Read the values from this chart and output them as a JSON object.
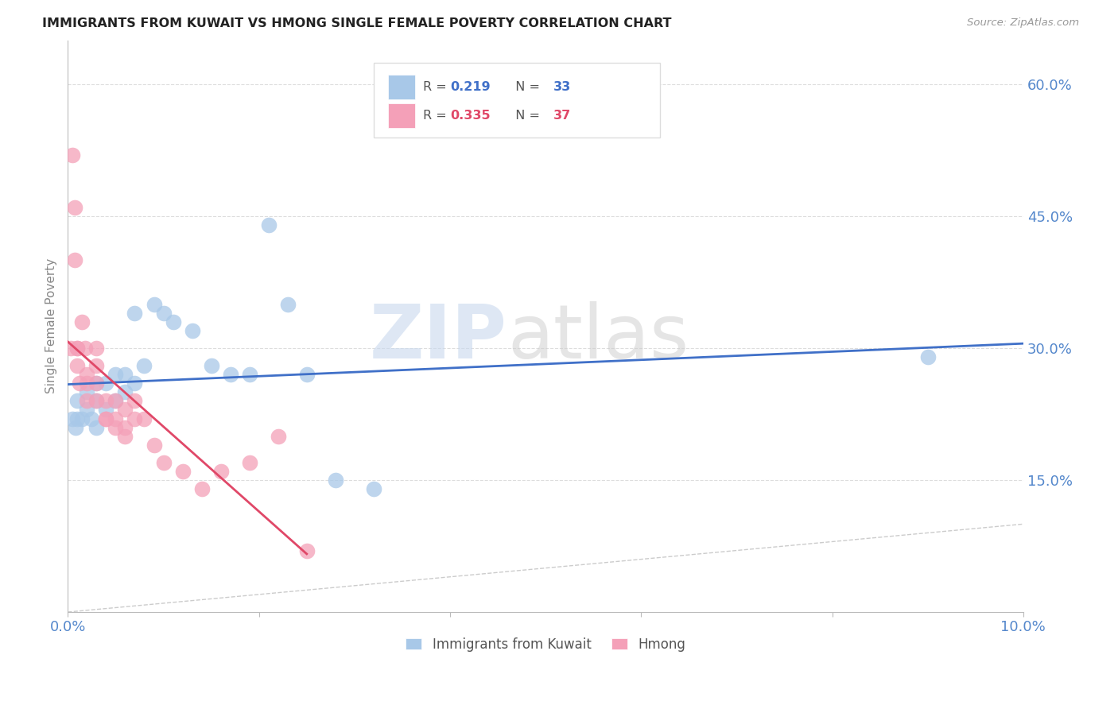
{
  "title": "IMMIGRANTS FROM KUWAIT VS HMONG SINGLE FEMALE POVERTY CORRELATION CHART",
  "source": "Source: ZipAtlas.com",
  "ylabel": "Single Female Poverty",
  "xlim": [
    0.0,
    0.1
  ],
  "ylim": [
    0.0,
    0.65
  ],
  "kuwait_R": 0.219,
  "kuwait_N": 33,
  "hmong_R": 0.335,
  "hmong_N": 37,
  "kuwait_color": "#a8c8e8",
  "hmong_color": "#f4a0b8",
  "kuwait_line_color": "#4070c8",
  "hmong_line_color": "#e04868",
  "diagonal_color": "#cccccc",
  "background_color": "#ffffff",
  "grid_color": "#dddddd",
  "axis_color": "#bbbbbb",
  "tick_label_color": "#5588cc",
  "title_color": "#222222",
  "kuwait_x": [
    0.0005,
    0.0008,
    0.001,
    0.001,
    0.0015,
    0.002,
    0.002,
    0.0025,
    0.003,
    0.003,
    0.003,
    0.004,
    0.004,
    0.005,
    0.005,
    0.006,
    0.006,
    0.007,
    0.007,
    0.008,
    0.009,
    0.01,
    0.011,
    0.013,
    0.015,
    0.017,
    0.019,
    0.021,
    0.023,
    0.025,
    0.028,
    0.032,
    0.09
  ],
  "kuwait_y": [
    0.22,
    0.21,
    0.22,
    0.24,
    0.22,
    0.23,
    0.25,
    0.22,
    0.21,
    0.24,
    0.26,
    0.23,
    0.26,
    0.24,
    0.27,
    0.25,
    0.27,
    0.26,
    0.34,
    0.28,
    0.35,
    0.34,
    0.33,
    0.32,
    0.28,
    0.27,
    0.27,
    0.44,
    0.35,
    0.27,
    0.15,
    0.14,
    0.29
  ],
  "hmong_x": [
    0.0003,
    0.0005,
    0.0007,
    0.0007,
    0.001,
    0.001,
    0.001,
    0.0012,
    0.0015,
    0.0018,
    0.002,
    0.002,
    0.002,
    0.003,
    0.003,
    0.003,
    0.003,
    0.004,
    0.004,
    0.004,
    0.005,
    0.005,
    0.005,
    0.006,
    0.006,
    0.006,
    0.007,
    0.007,
    0.008,
    0.009,
    0.01,
    0.012,
    0.014,
    0.016,
    0.019,
    0.022,
    0.025
  ],
  "hmong_y": [
    0.3,
    0.52,
    0.46,
    0.4,
    0.3,
    0.3,
    0.28,
    0.26,
    0.33,
    0.3,
    0.27,
    0.26,
    0.24,
    0.3,
    0.28,
    0.26,
    0.24,
    0.22,
    0.24,
    0.22,
    0.21,
    0.22,
    0.24,
    0.23,
    0.2,
    0.21,
    0.24,
    0.22,
    0.22,
    0.19,
    0.17,
    0.16,
    0.14,
    0.16,
    0.17,
    0.2,
    0.07
  ]
}
